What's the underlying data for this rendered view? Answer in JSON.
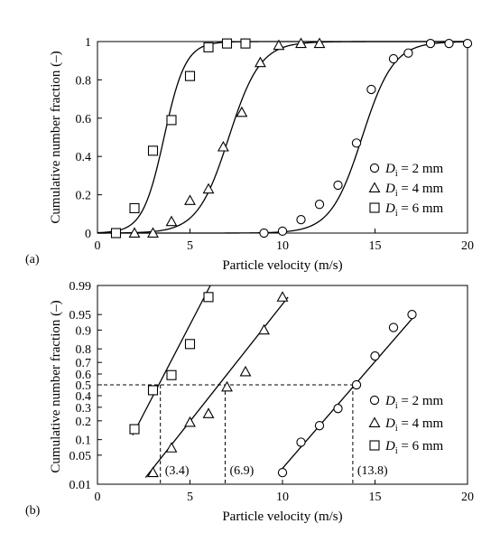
{
  "chart_data": [
    {
      "type": "line",
      "panel_label": "(a)",
      "xlabel": "Particle velocity (m/s)",
      "ylabel": "Cumulative number fraction (–)",
      "xlim": [
        0,
        20
      ],
      "ylim": [
        0,
        1
      ],
      "x_ticks": [
        0,
        5,
        10,
        15,
        20
      ],
      "x_tick_labels": [
        "0",
        "5",
        "10",
        "15",
        "20"
      ],
      "y_ticks": [
        0,
        0.2,
        0.4,
        0.6,
        0.8,
        1
      ],
      "y_tick_labels": [
        "0",
        "0.2",
        "0.4",
        "0.6",
        "0.8",
        "1"
      ],
      "grid": false,
      "legend_position": "bottom-right",
      "series": [
        {
          "name_prefix": "D",
          "name_sub": "i",
          "name_suffix": " = 2 mm",
          "marker": "circle",
          "points": [
            [
              9,
              0
            ],
            [
              10,
              0.01
            ],
            [
              11,
              0.07
            ],
            [
              12,
              0.15
            ],
            [
              13,
              0.25
            ],
            [
              14,
              0.47
            ],
            [
              14.8,
              0.75
            ],
            [
              16,
              0.91
            ],
            [
              16.8,
              0.94
            ],
            [
              18,
              0.99
            ],
            [
              19,
              0.99
            ],
            [
              20,
              0.99
            ]
          ]
        },
        {
          "name_prefix": "D",
          "name_sub": "i",
          "name_suffix": " = 4 mm",
          "marker": "triangle",
          "points": [
            [
              2,
              0
            ],
            [
              3,
              0
            ],
            [
              4,
              0.06
            ],
            [
              5,
              0.17
            ],
            [
              6,
              0.23
            ],
            [
              6.8,
              0.45
            ],
            [
              7.8,
              0.63
            ],
            [
              8.8,
              0.89
            ],
            [
              9.8,
              0.98
            ],
            [
              11,
              0.99
            ],
            [
              12,
              0.99
            ]
          ]
        },
        {
          "name_prefix": "D",
          "name_sub": "i",
          "name_suffix": " = 6 mm",
          "marker": "square",
          "points": [
            [
              1,
              0
            ],
            [
              2,
              0.13
            ],
            [
              3,
              0.43
            ],
            [
              4,
              0.59
            ],
            [
              5,
              0.82
            ],
            [
              6,
              0.97
            ],
            [
              7,
              0.99
            ],
            [
              8,
              0.99
            ]
          ]
        }
      ],
      "fit_curves": [
        {
          "type": "logistic",
          "mean": 14.3,
          "scale": 0.85
        },
        {
          "type": "logistic",
          "mean": 7.1,
          "scale": 0.85
        },
        {
          "type": "logistic",
          "mean": 3.6,
          "scale": 0.58
        }
      ]
    },
    {
      "type": "line",
      "panel_label": "(b)",
      "xlabel": "Particle velocity (m/s)",
      "ylabel": "Cumulative number fraction (–)",
      "yscale": "normal-probability",
      "xlim": [
        0,
        20
      ],
      "ylim": [
        0.01,
        0.99
      ],
      "x_ticks": [
        0,
        5,
        10,
        15,
        20
      ],
      "x_tick_labels": [
        "0",
        "5",
        "10",
        "15",
        "20"
      ],
      "y_ticks": [
        0.01,
        0.05,
        0.1,
        0.2,
        0.3,
        0.4,
        0.5,
        0.6,
        0.7,
        0.8,
        0.9,
        0.95,
        0.99
      ],
      "y_tick_labels": [
        "0.01",
        "0.05",
        "0.1",
        "0.2",
        "0.3",
        "0.4",
        "0.5",
        "0.6",
        "0.7",
        "0.8",
        "0.9",
        "0.95",
        "0.99"
      ],
      "grid": false,
      "legend_position": "bottom-right",
      "series": [
        {
          "name_prefix": "D",
          "name_sub": "i",
          "name_suffix": " = 2 mm",
          "marker": "circle",
          "points": [
            [
              10,
              0.02
            ],
            [
              11,
              0.09
            ],
            [
              12,
              0.17
            ],
            [
              13,
              0.29
            ],
            [
              14,
              0.5
            ],
            [
              15,
              0.75
            ],
            [
              16,
              0.91
            ],
            [
              17,
              0.95
            ]
          ]
        },
        {
          "name_prefix": "D",
          "name_sub": "i",
          "name_suffix": " = 4 mm",
          "marker": "triangle",
          "points": [
            [
              3,
              0.02
            ],
            [
              4,
              0.07
            ],
            [
              5,
              0.19
            ],
            [
              6,
              0.25
            ],
            [
              7,
              0.48
            ],
            [
              8,
              0.62
            ],
            [
              9,
              0.9
            ],
            [
              10,
              0.98
            ]
          ]
        },
        {
          "name_prefix": "D",
          "name_sub": "i",
          "name_suffix": " = 6 mm",
          "marker": "square",
          "points": [
            [
              2,
              0.15
            ],
            [
              3,
              0.45
            ],
            [
              4,
              0.59
            ],
            [
              5,
              0.83
            ],
            [
              6,
              0.98
            ]
          ]
        }
      ],
      "fit_lines": [
        {
          "x": [
            9.8,
            17.2
          ],
          "y": [
            0.02,
            0.95
          ]
        },
        {
          "x": [
            2.6,
            10.3
          ],
          "y": [
            0.015,
            0.98
          ]
        },
        {
          "x": [
            1.9,
            6.1
          ],
          "y": [
            0.12,
            0.99
          ]
        }
      ],
      "reference_line_y": 0.5,
      "annotations": [
        {
          "x": 3.4,
          "text": "(3.4)"
        },
        {
          "x": 6.9,
          "text": "(6.9)"
        },
        {
          "x": 13.8,
          "text": "(13.8)"
        }
      ]
    }
  ]
}
